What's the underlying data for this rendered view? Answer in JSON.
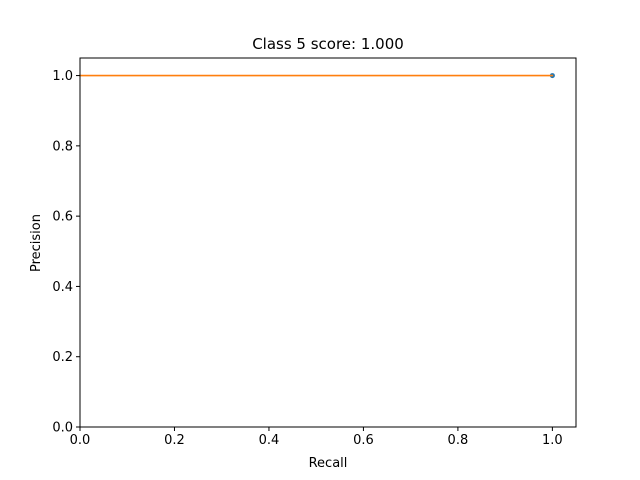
{
  "chart_data": {
    "type": "line",
    "title": "Class 5 score: 1.000",
    "xlabel": "Recall",
    "ylabel": "Precision",
    "xlim": [
      0,
      1.05
    ],
    "ylim": [
      0,
      1.05
    ],
    "grid": false,
    "xticks": [
      0.0,
      0.2,
      0.4,
      0.6,
      0.8,
      1.0
    ],
    "yticks": [
      0.0,
      0.2,
      0.4,
      0.6,
      0.8,
      1.0
    ],
    "xtick_labels": [
      "0.0",
      "0.2",
      "0.4",
      "0.6",
      "0.8",
      "1.0"
    ],
    "ytick_labels": [
      "0.0",
      "0.2",
      "0.4",
      "0.6",
      "0.8",
      "1.0"
    ],
    "series": [
      {
        "kind": "scatter",
        "color": "#1f77b4",
        "x": [
          1.0
        ],
        "y": [
          1.0
        ]
      },
      {
        "kind": "line",
        "color": "#ff7f0e",
        "x": [
          0.0,
          1.0
        ],
        "y": [
          1.0,
          1.0
        ]
      }
    ]
  }
}
